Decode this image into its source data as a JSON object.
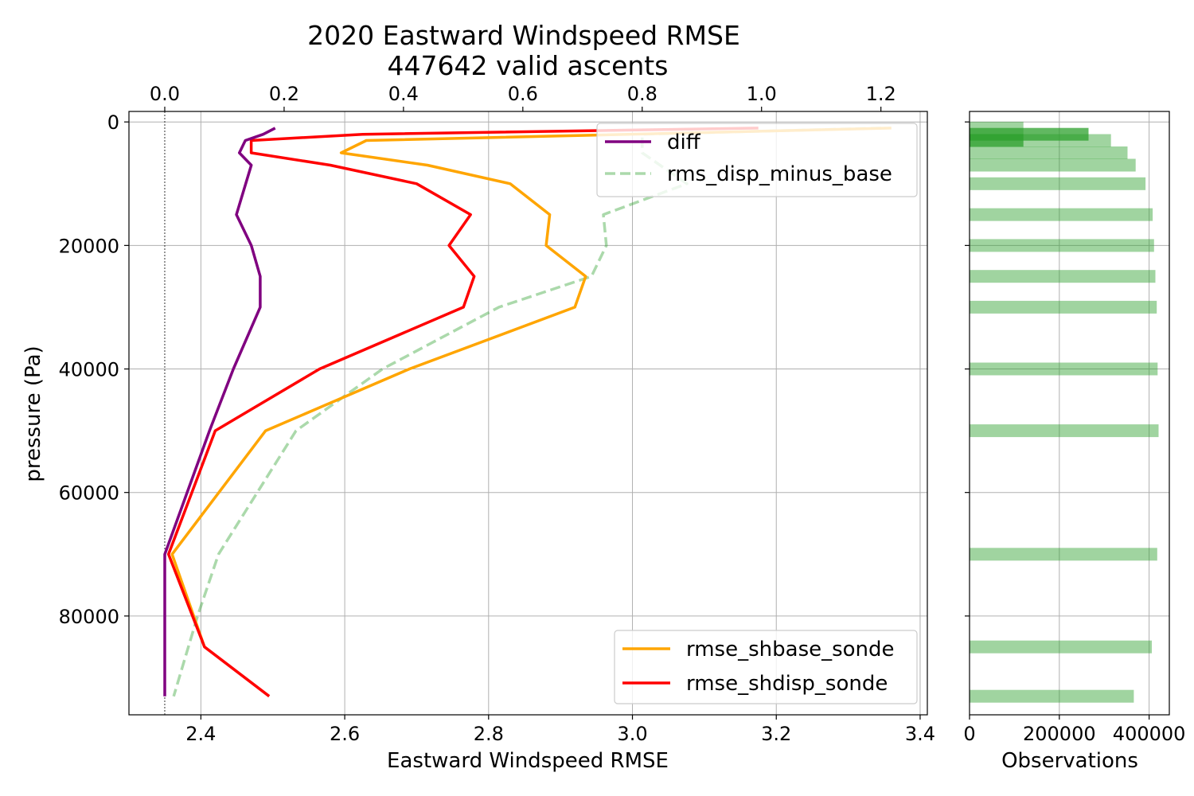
{
  "chart_data": {
    "type": "line",
    "title": "2020 Eastward Windspeed RMSE",
    "subtitle": "447642 valid ascents",
    "xlabel": "Eastward Windspeed RMSE",
    "ylabel": "pressure (Pa)",
    "xlim": [
      2.3,
      3.41
    ],
    "ylim": [
      96000,
      -1700
    ],
    "xticks": [
      2.4,
      2.6,
      2.8,
      3.0,
      3.2,
      3.4
    ],
    "xtick_labels": [
      "2.4",
      "2.6",
      "2.8",
      "3.0",
      "3.2",
      "3.4"
    ],
    "top_xlim": [
      -0.06,
      1.2778
    ],
    "top_xticks": [
      0.0,
      0.2,
      0.4,
      0.6,
      0.8,
      1.0,
      1.2
    ],
    "top_xtick_labels": [
      "0.0",
      "0.2",
      "0.4",
      "0.6",
      "0.8",
      "1.0",
      "1.2"
    ],
    "yticks": [
      0,
      20000,
      40000,
      60000,
      80000
    ],
    "ytick_labels": [
      "0",
      "20000",
      "40000",
      "60000",
      "80000"
    ],
    "grid": true,
    "zero_line_top_axis": 0.0,
    "legends": [
      {
        "placement": "top-right",
        "entries": [
          "diff",
          "rms_disp_minus_base"
        ]
      },
      {
        "placement": "bottom-right",
        "entries": [
          "rmse_shbase_sonde",
          "rmse_shdisp_sonde"
        ]
      }
    ],
    "series": [
      {
        "name": "rmse_shbase_sonde",
        "axis": "bottom",
        "color": "#ffa500",
        "style": "solid",
        "points": [
          [
            3.36,
            1000
          ],
          [
            2.63,
            3000
          ],
          [
            2.595,
            5000
          ],
          [
            2.715,
            7000
          ],
          [
            2.83,
            10000
          ],
          [
            2.885,
            15000
          ],
          [
            2.88,
            20000
          ],
          [
            2.935,
            25000
          ],
          [
            2.92,
            30000
          ],
          [
            2.69,
            40000
          ],
          [
            2.49,
            50000
          ],
          [
            2.36,
            70000
          ],
          [
            2.405,
            85000
          ]
        ]
      },
      {
        "name": "rmse_shdisp_sonde",
        "axis": "bottom",
        "color": "#ff0000",
        "style": "solid",
        "points": [
          [
            3.175,
            1000
          ],
          [
            2.625,
            2000
          ],
          [
            2.47,
            3000
          ],
          [
            2.47,
            5000
          ],
          [
            2.58,
            7000
          ],
          [
            2.7,
            10000
          ],
          [
            2.775,
            15000
          ],
          [
            2.745,
            20000
          ],
          [
            2.78,
            25000
          ],
          [
            2.765,
            30000
          ],
          [
            2.565,
            40000
          ],
          [
            2.42,
            50000
          ],
          [
            2.355,
            70000
          ],
          [
            2.405,
            85000
          ],
          [
            2.495,
            93000
          ]
        ]
      },
      {
        "name": "diff",
        "axis": "top",
        "color": "#800080",
        "style": "solid",
        "points": [
          [
            0.185,
            1000
          ],
          [
            0.165,
            2000
          ],
          [
            0.135,
            3000
          ],
          [
            0.125,
            5000
          ],
          [
            0.145,
            7000
          ],
          [
            0.12,
            15000
          ],
          [
            0.145,
            20000
          ],
          [
            0.16,
            25000
          ],
          [
            0.16,
            30000
          ],
          [
            0.115,
            40000
          ],
          [
            0.075,
            50000
          ],
          [
            0.0,
            70000
          ],
          [
            0.0,
            93000
          ]
        ]
      },
      {
        "name": "rms_disp_minus_base",
        "axis": "top",
        "color": "#2ca02c",
        "opacity": 0.4,
        "style": "dashed",
        "points": [
          [
            1.2,
            1000
          ],
          [
            0.8,
            2000
          ],
          [
            0.8,
            5000
          ],
          [
            0.875,
            10000
          ],
          [
            0.735,
            15000
          ],
          [
            0.74,
            20000
          ],
          [
            0.715,
            25000
          ],
          [
            0.56,
            30000
          ],
          [
            0.365,
            40000
          ],
          [
            0.22,
            50000
          ],
          [
            0.09,
            70000
          ],
          [
            0.055,
            80000
          ],
          [
            0.015,
            93000
          ]
        ]
      }
    ],
    "observations_panel": {
      "type": "bar",
      "orientation": "horizontal",
      "xlabel": "Observations",
      "xlim": [
        0,
        445000
      ],
      "xticks": [
        0,
        200000,
        400000
      ],
      "xtick_labels": [
        "0",
        "200000",
        "400000"
      ],
      "bars": [
        {
          "pressure": 1000,
          "value": 120000
        },
        {
          "pressure": 2000,
          "value": 265000,
          "color": "dark"
        },
        {
          "pressure": 3000,
          "value": 120000,
          "color": "dark"
        },
        {
          "pressure": 3000,
          "value": 315000
        },
        {
          "pressure": 5000,
          "value": 352000
        },
        {
          "pressure": 7000,
          "value": 370000
        },
        {
          "pressure": 10000,
          "value": 392000
        },
        {
          "pressure": 15000,
          "value": 408000
        },
        {
          "pressure": 20000,
          "value": 411000
        },
        {
          "pressure": 25000,
          "value": 414000
        },
        {
          "pressure": 30000,
          "value": 417000
        },
        {
          "pressure": 40000,
          "value": 419000
        },
        {
          "pressure": 50000,
          "value": 421000
        },
        {
          "pressure": 70000,
          "value": 418000
        },
        {
          "pressure": 85000,
          "value": 406000
        },
        {
          "pressure": 93000,
          "value": 366000
        }
      ]
    }
  }
}
